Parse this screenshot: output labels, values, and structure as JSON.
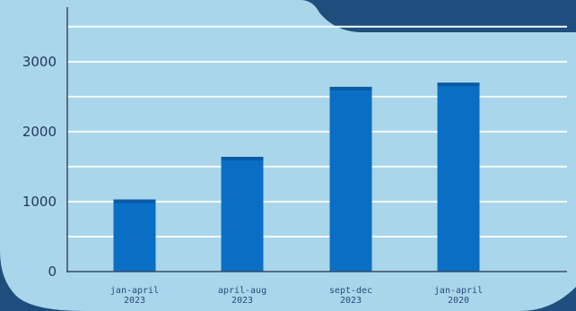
{
  "chart_data": {
    "type": "bar",
    "categories": [
      [
        "jan-april",
        "2023"
      ],
      [
        "april-aug",
        "2023"
      ],
      [
        "sept-dec",
        "2023"
      ],
      [
        "jan-april",
        "2020"
      ]
    ],
    "values": [
      1030,
      1640,
      2640,
      2700
    ],
    "ylim": [
      0,
      3600
    ],
    "yticks": [
      0,
      1000,
      2000,
      3000
    ],
    "grid": true,
    "legend": "none",
    "colors": {
      "panel": "#a9d6ea",
      "bar": "#0a6fc4",
      "bar_top": "#0a5aa6",
      "gridline": "#f5fbfe",
      "axis": "#3a4a63",
      "frame": "#1e4f7c"
    }
  }
}
